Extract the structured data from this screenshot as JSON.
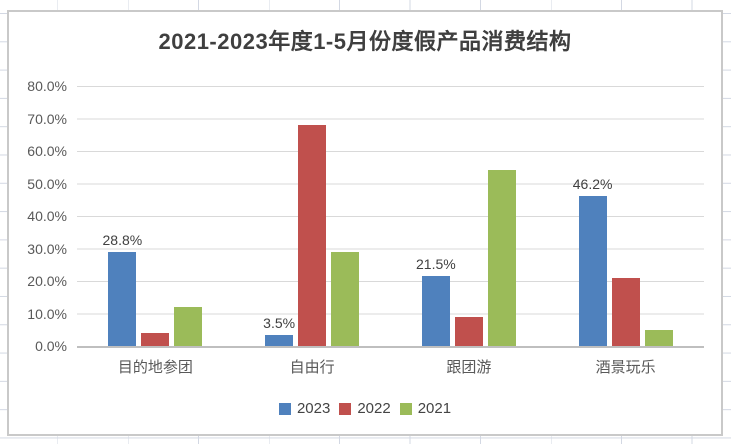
{
  "chart_data": {
    "type": "bar",
    "title": "2021-2023年度1-5月份度假产品消费结构",
    "categories": [
      "目的地参团",
      "自由行",
      "跟团游",
      "酒景玩乐"
    ],
    "series": [
      {
        "name": "2023",
        "color": "#4F81BD",
        "values": [
          28.8,
          3.5,
          21.5,
          46.2
        ],
        "labels": [
          "28.8%",
          "3.5%",
          "21.5%",
          "46.2%"
        ]
      },
      {
        "name": "2022",
        "color": "#C0504D",
        "values": [
          4,
          68,
          9,
          21
        ]
      },
      {
        "name": "2021",
        "color": "#9BBB59",
        "values": [
          12,
          29,
          54,
          5
        ]
      }
    ],
    "ylim": [
      0,
      80
    ],
    "ytick_step": 10,
    "yticks": [
      "80.0%",
      "70.0%",
      "60.0%",
      "50.0%",
      "40.0%",
      "30.0%",
      "20.0%",
      "10.0%",
      "0.0%"
    ],
    "grid": true,
    "legend_position": "bottom",
    "data_labels_series": "2023"
  },
  "layout_colors": {
    "gridline": "#d9d9d9",
    "axis_line": "#bfbfbf",
    "chart_border": "#c9c9c9",
    "title_text": "#3f3f3f",
    "tick_text": "#595959",
    "sheet_gridline": "#d3d8e3"
  }
}
